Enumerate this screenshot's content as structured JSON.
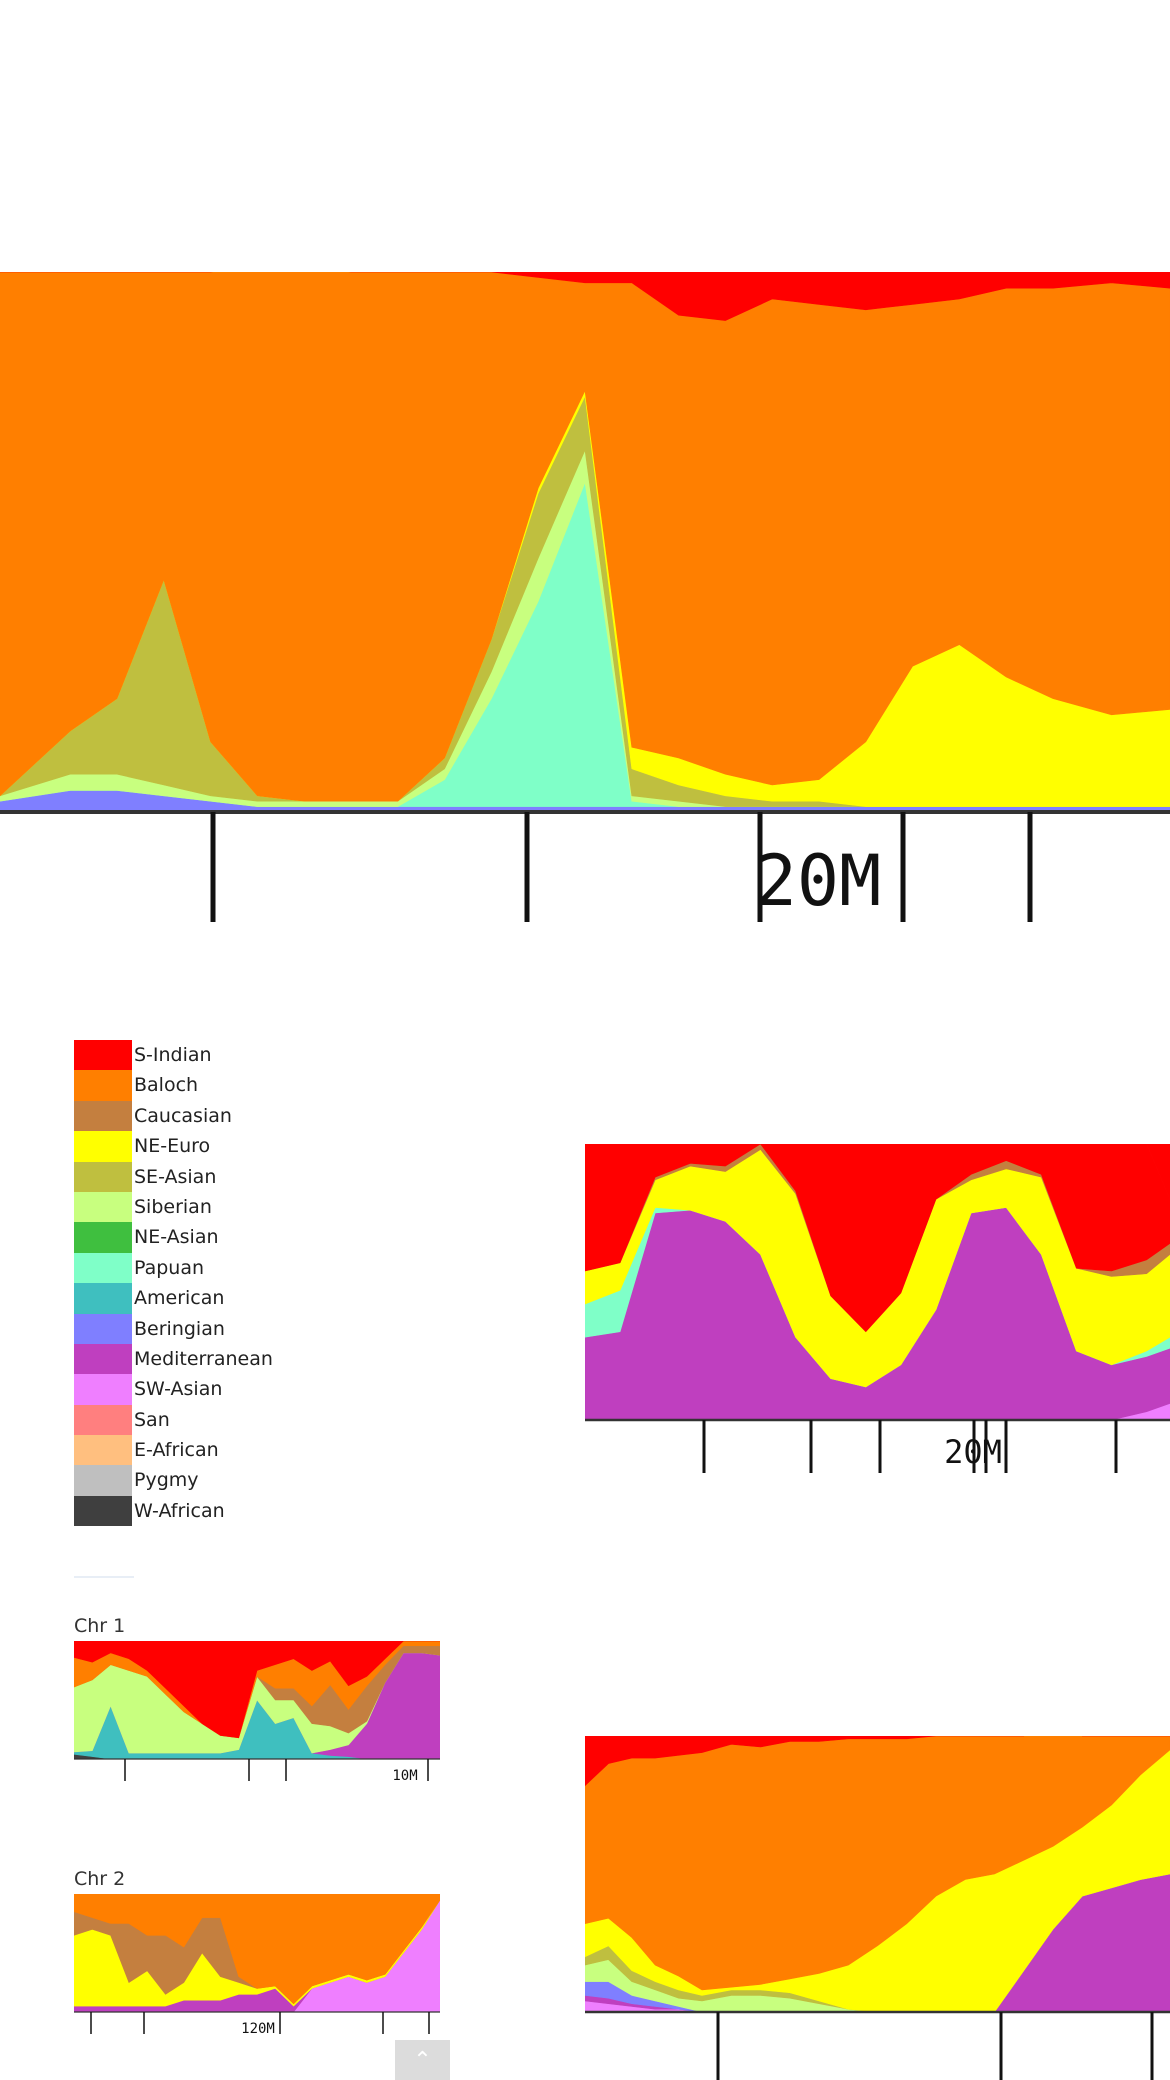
{
  "legend": {
    "items": [
      {
        "label": "S-Indian",
        "color": "#ff0000"
      },
      {
        "label": "Baloch",
        "color": "#ff7f00"
      },
      {
        "label": "Caucasian",
        "color": "#c47f3f"
      },
      {
        "label": "NE-Euro",
        "color": "#ffff00"
      },
      {
        "label": "SE-Asian",
        "color": "#bfbf3f"
      },
      {
        "label": "Siberian",
        "color": "#c8ff7f"
      },
      {
        "label": "NE-Asian",
        "color": "#3fbf3f"
      },
      {
        "label": "Papuan",
        "color": "#7fffc8"
      },
      {
        "label": "American",
        "color": "#3fbfbf"
      },
      {
        "label": "Beringian",
        "color": "#7f7fff"
      },
      {
        "label": "Mediterranean",
        "color": "#bf3fbf"
      },
      {
        "label": "SW-Asian",
        "color": "#ef7fff"
      },
      {
        "label": "San",
        "color": "#ff7f7f"
      },
      {
        "label": "E-African",
        "color": "#ffbf7f"
      },
      {
        "label": "Pygmy",
        "color": "#bfbfbf"
      },
      {
        "label": "W-African",
        "color": "#3f3f3f"
      }
    ]
  },
  "panels": {
    "chr1_label": "Chr 1",
    "chr2_label": "Chr 2"
  },
  "chart_data": [
    {
      "type": "area",
      "ticks": [
        "",
        "",
        "",
        "20M",
        "",
        ""
      ],
      "x": [
        0,
        0.06,
        0.1,
        0.14,
        0.18,
        0.22,
        0.26,
        0.3,
        0.34,
        0.38,
        0.42,
        0.46,
        0.5,
        0.54,
        0.58,
        0.62,
        0.66,
        0.7,
        0.74,
        0.78,
        0.82,
        0.86,
        0.9,
        0.95,
        1
      ],
      "series": [
        {
          "name": "Beringian",
          "color": "#7f7fff",
          "values": [
            0.02,
            0.04,
            0.04,
            0.03,
            0.02,
            0.01,
            0.01,
            0.01,
            0.01,
            0.01,
            0.01,
            0.01,
            0.01,
            0.01,
            0.01,
            0.01,
            0.01,
            0.01,
            0.01,
            0.01,
            0.01,
            0.01,
            0.01,
            0.01,
            0.01
          ]
        },
        {
          "name": "Papuan",
          "color": "#7fffc8",
          "values": [
            0,
            0,
            0,
            0,
            0,
            0,
            0,
            0,
            0,
            0.05,
            0.2,
            0.38,
            0.6,
            0.01,
            0,
            0,
            0,
            0,
            0,
            0,
            0,
            0,
            0,
            0,
            0
          ]
        },
        {
          "name": "Siberian",
          "color": "#c8ff7f",
          "values": [
            0.01,
            0.03,
            0.03,
            0.02,
            0.01,
            0.01,
            0.01,
            0.01,
            0.01,
            0.02,
            0.05,
            0.08,
            0.06,
            0.01,
            0.01,
            0,
            0,
            0,
            0,
            0,
            0,
            0,
            0,
            0,
            0
          ]
        },
        {
          "name": "SE-Asian",
          "color": "#bfbf3f",
          "values": [
            0,
            0.08,
            0.14,
            0.38,
            0.1,
            0.01,
            0,
            0,
            0,
            0.02,
            0.06,
            0.12,
            0.1,
            0.05,
            0.03,
            0.02,
            0.01,
            0.01,
            0,
            0,
            0,
            0,
            0,
            0,
            0
          ]
        },
        {
          "name": "NE-Euro",
          "color": "#ffff00",
          "values": [
            0,
            0,
            0,
            0,
            0,
            0,
            0,
            0,
            0,
            0,
            0,
            0.01,
            0.01,
            0.04,
            0.05,
            0.04,
            0.03,
            0.04,
            0.12,
            0.26,
            0.3,
            0.24,
            0.2,
            0.17,
            0.18
          ]
        },
        {
          "name": "Baloch",
          "color": "#ff7f00",
          "values": [
            0.97,
            0.85,
            0.79,
            0.57,
            0.87,
            0.98,
            0.99,
            0.98,
            0.98,
            0.9,
            0.68,
            0.39,
            0.2,
            0.86,
            0.82,
            0.84,
            0.9,
            0.88,
            0.8,
            0.67,
            0.64,
            0.72,
            0.76,
            0.8,
            0.78
          ]
        },
        {
          "name": "S-Indian",
          "color": "#ff0000",
          "values": [
            0,
            0,
            0,
            0,
            0,
            0,
            0,
            0.02,
            0,
            0,
            0,
            0.01,
            0.02,
            0.03,
            0.08,
            0.09,
            0.05,
            0.06,
            0.07,
            0.06,
            0.05,
            0.03,
            0.03,
            0.02,
            0.03
          ]
        }
      ]
    },
    {
      "type": "area",
      "ticks": [
        "",
        "",
        "",
        "20M",
        "",
        "",
        ""
      ],
      "x": [
        0,
        0.06,
        0.12,
        0.18,
        0.24,
        0.3,
        0.36,
        0.42,
        0.48,
        0.54,
        0.6,
        0.66,
        0.72,
        0.78,
        0.84,
        0.9,
        0.96,
        1
      ],
      "series": [
        {
          "name": "SW-Asian",
          "color": "#ef7fff",
          "values": [
            0,
            0,
            0,
            0,
            0,
            0,
            0,
            0,
            0,
            0,
            0,
            0,
            0,
            0,
            0,
            0,
            0.03,
            0.06
          ]
        },
        {
          "name": "Mediterranean",
          "color": "#bf3fbf",
          "values": [
            0.3,
            0.32,
            0.75,
            0.76,
            0.72,
            0.6,
            0.3,
            0.15,
            0.12,
            0.2,
            0.4,
            0.75,
            0.77,
            0.6,
            0.25,
            0.2,
            0.2,
            0.2
          ]
        },
        {
          "name": "Papuan",
          "color": "#7fffc8",
          "values": [
            0.12,
            0.15,
            0.02,
            0,
            0,
            0,
            0,
            0,
            0,
            0,
            0,
            0,
            0,
            0,
            0,
            0,
            0.02,
            0.04
          ]
        },
        {
          "name": "NE-Euro",
          "color": "#ffff00",
          "values": [
            0.12,
            0.1,
            0.1,
            0.16,
            0.18,
            0.38,
            0.52,
            0.3,
            0.2,
            0.26,
            0.4,
            0.12,
            0.14,
            0.28,
            0.3,
            0.32,
            0.28,
            0.3
          ]
        },
        {
          "name": "Caucasian",
          "color": "#c47f3f",
          "values": [
            0,
            0,
            0.01,
            0.01,
            0.02,
            0.02,
            0.01,
            0,
            0,
            0,
            0,
            0.02,
            0.03,
            0.01,
            0,
            0.02,
            0.05,
            0.04
          ]
        },
        {
          "name": "S-Indian",
          "color": "#ff0000",
          "values": [
            0.46,
            0.43,
            0.12,
            0.07,
            0.08,
            0,
            0.17,
            0.55,
            0.68,
            0.54,
            0.2,
            0.11,
            0.06,
            0.11,
            0.45,
            0.46,
            0.42,
            0.16
          ]
        }
      ]
    },
    {
      "type": "area",
      "title": "Chr 1",
      "ticks": [
        "",
        "",
        "",
        "10M"
      ],
      "x": [
        0,
        0.05,
        0.1,
        0.15,
        0.2,
        0.25,
        0.3,
        0.35,
        0.4,
        0.45,
        0.5,
        0.55,
        0.6,
        0.65,
        0.7,
        0.75,
        0.8,
        0.85,
        0.9,
        0.95,
        1
      ],
      "series": [
        {
          "name": "W-African",
          "color": "#3f3f3f",
          "values": [
            0.04,
            0.02,
            0,
            0,
            0,
            0,
            0,
            0,
            0,
            0,
            0,
            0,
            0,
            0,
            0,
            0,
            0,
            0,
            0,
            0,
            0
          ]
        },
        {
          "name": "American",
          "color": "#3fbfbf",
          "values": [
            0.02,
            0.05,
            0.45,
            0.05,
            0.05,
            0.05,
            0.05,
            0.05,
            0.05,
            0.08,
            0.5,
            0.3,
            0.35,
            0.05,
            0.03,
            0.02,
            0,
            0,
            0,
            0,
            0
          ]
        },
        {
          "name": "Mediterranean",
          "color": "#bf3fbf",
          "values": [
            0,
            0,
            0,
            0,
            0,
            0,
            0,
            0,
            0,
            0,
            0,
            0,
            0,
            0,
            0.05,
            0.1,
            0.3,
            0.65,
            0.9,
            0.9,
            0.88
          ]
        },
        {
          "name": "Siberian",
          "color": "#c8ff7f",
          "values": [
            0.55,
            0.6,
            0.35,
            0.7,
            0.65,
            0.5,
            0.35,
            0.25,
            0.15,
            0.1,
            0.2,
            0.2,
            0.15,
            0.25,
            0.2,
            0.1,
            0.02,
            0,
            0,
            0,
            0
          ]
        },
        {
          "name": "Caucasian",
          "color": "#c47f3f",
          "values": [
            0,
            0,
            0,
            0,
            0,
            0,
            0,
            0,
            0,
            0,
            0,
            0.1,
            0.1,
            0.15,
            0.35,
            0.2,
            0.3,
            0.15,
            0.06,
            0.06,
            0.08
          ]
        },
        {
          "name": "Baloch",
          "color": "#ff7f00",
          "values": [
            0.25,
            0.15,
            0.1,
            0.1,
            0.05,
            0.05,
            0.05,
            0,
            0,
            0,
            0.05,
            0.2,
            0.25,
            0.3,
            0.2,
            0.2,
            0.08,
            0.05,
            0.04,
            0.04,
            0.04
          ]
        },
        {
          "name": "S-Indian",
          "color": "#ff0000",
          "values": [
            0.14,
            0.18,
            0.1,
            0.15,
            0.25,
            0.4,
            0.55,
            0.7,
            0.8,
            0.82,
            0.25,
            0.2,
            0.15,
            0.25,
            0.17,
            0.38,
            0.3,
            0.15,
            0,
            0,
            0
          ]
        }
      ]
    },
    {
      "type": "area",
      "title": "Chr 2",
      "ticks": [
        "",
        "",
        "120M",
        "",
        ""
      ],
      "x": [
        0,
        0.05,
        0.1,
        0.15,
        0.2,
        0.25,
        0.3,
        0.35,
        0.4,
        0.45,
        0.5,
        0.55,
        0.6,
        0.65,
        0.7,
        0.75,
        0.8,
        0.85,
        0.9,
        0.95,
        1
      ],
      "series": [
        {
          "name": "SW-Asian",
          "color": "#ef7fff",
          "values": [
            0,
            0,
            0,
            0,
            0,
            0,
            0,
            0,
            0,
            0,
            0,
            0,
            0,
            0.2,
            0.25,
            0.3,
            0.25,
            0.3,
            0.5,
            0.7,
            0.95
          ]
        },
        {
          "name": "Mediterranean",
          "color": "#bf3fbf",
          "values": [
            0.05,
            0.05,
            0.05,
            0.05,
            0.05,
            0.05,
            0.1,
            0.1,
            0.1,
            0.15,
            0.15,
            0.2,
            0.05,
            0,
            0,
            0,
            0,
            0,
            0,
            0,
            0
          ]
        },
        {
          "name": "NE-Euro",
          "color": "#ffff00",
          "values": [
            0.6,
            0.65,
            0.6,
            0.2,
            0.3,
            0.1,
            0.15,
            0.4,
            0.2,
            0.1,
            0.05,
            0.02,
            0.02,
            0.02,
            0.02,
            0.02,
            0.02,
            0.02,
            0.02,
            0.02,
            0
          ]
        },
        {
          "name": "Caucasian",
          "color": "#c47f3f",
          "values": [
            0.2,
            0.1,
            0.1,
            0.5,
            0.3,
            0.5,
            0.3,
            0.3,
            0.5,
            0.05,
            0,
            0,
            0,
            0,
            0,
            0,
            0,
            0,
            0,
            0,
            0
          ]
        },
        {
          "name": "Baloch",
          "color": "#ff7f00",
          "values": [
            0.15,
            0.2,
            0.25,
            0.25,
            0.35,
            0.35,
            0.45,
            0.2,
            0.2,
            0.7,
            0.8,
            0.78,
            0.93,
            0.78,
            0.73,
            0.68,
            0.73,
            0.68,
            0.48,
            0.28,
            0.05
          ]
        }
      ]
    },
    {
      "type": "area",
      "ticks": [
        "",
        "",
        ""
      ],
      "x": [
        0,
        0.04,
        0.08,
        0.12,
        0.16,
        0.2,
        0.25,
        0.3,
        0.35,
        0.4,
        0.45,
        0.5,
        0.55,
        0.6,
        0.65,
        0.7,
        0.75,
        0.8,
        0.85,
        0.9,
        0.95,
        1
      ],
      "series": [
        {
          "name": "SW-Asian",
          "color": "#ef7fff",
          "values": [
            0.04,
            0.03,
            0.02,
            0.01,
            0.01,
            0,
            0,
            0,
            0,
            0,
            0,
            0,
            0,
            0,
            0,
            0,
            0,
            0,
            0,
            0,
            0,
            0
          ]
        },
        {
          "name": "Mediterranean",
          "color": "#bf3fbf",
          "values": [
            0.02,
            0.02,
            0.01,
            0.01,
            0,
            0,
            0,
            0,
            0,
            0,
            0,
            0,
            0,
            0,
            0,
            0,
            0.15,
            0.3,
            0.42,
            0.45,
            0.48,
            0.5
          ]
        },
        {
          "name": "Beringian",
          "color": "#7f7fff",
          "values": [
            0.05,
            0.06,
            0.03,
            0.02,
            0.01,
            0,
            0,
            0,
            0,
            0,
            0,
            0,
            0,
            0,
            0,
            0,
            0,
            0,
            0,
            0,
            0,
            0
          ]
        },
        {
          "name": "Siberian",
          "color": "#c8ff7f",
          "values": [
            0.06,
            0.08,
            0.05,
            0.04,
            0.03,
            0.04,
            0.06,
            0.06,
            0.05,
            0.03,
            0.01,
            0,
            0,
            0,
            0,
            0,
            0,
            0,
            0,
            0,
            0,
            0
          ]
        },
        {
          "name": "SE-Asian",
          "color": "#bfbf3f",
          "values": [
            0.03,
            0.05,
            0.04,
            0.03,
            0.03,
            0.02,
            0.02,
            0.02,
            0.02,
            0.01,
            0,
            0,
            0,
            0,
            0,
            0,
            0,
            0,
            0,
            0,
            0,
            0
          ]
        },
        {
          "name": "NE-Euro",
          "color": "#ffff00",
          "values": [
            0.12,
            0.1,
            0.12,
            0.06,
            0.05,
            0.02,
            0.01,
            0.02,
            0.05,
            0.1,
            0.16,
            0.24,
            0.32,
            0.42,
            0.48,
            0.5,
            0.4,
            0.3,
            0.25,
            0.3,
            0.38,
            0.45
          ]
        },
        {
          "name": "Baloch",
          "color": "#ff7f00",
          "values": [
            0.5,
            0.56,
            0.65,
            0.75,
            0.8,
            0.86,
            0.88,
            0.86,
            0.86,
            0.84,
            0.82,
            0.75,
            0.67,
            0.58,
            0.52,
            0.5,
            0.45,
            0.7,
            0.33,
            0.25,
            0.14,
            0.05
          ]
        },
        {
          "name": "S-Indian",
          "color": "#ff0000",
          "values": [
            0.18,
            0.1,
            0.08,
            0.08,
            0.07,
            0.06,
            0.03,
            0.04,
            0.02,
            0.02,
            0.01,
            0.01,
            0.01,
            0,
            0,
            0,
            0,
            0,
            0,
            0,
            0,
            0
          ]
        }
      ]
    }
  ]
}
